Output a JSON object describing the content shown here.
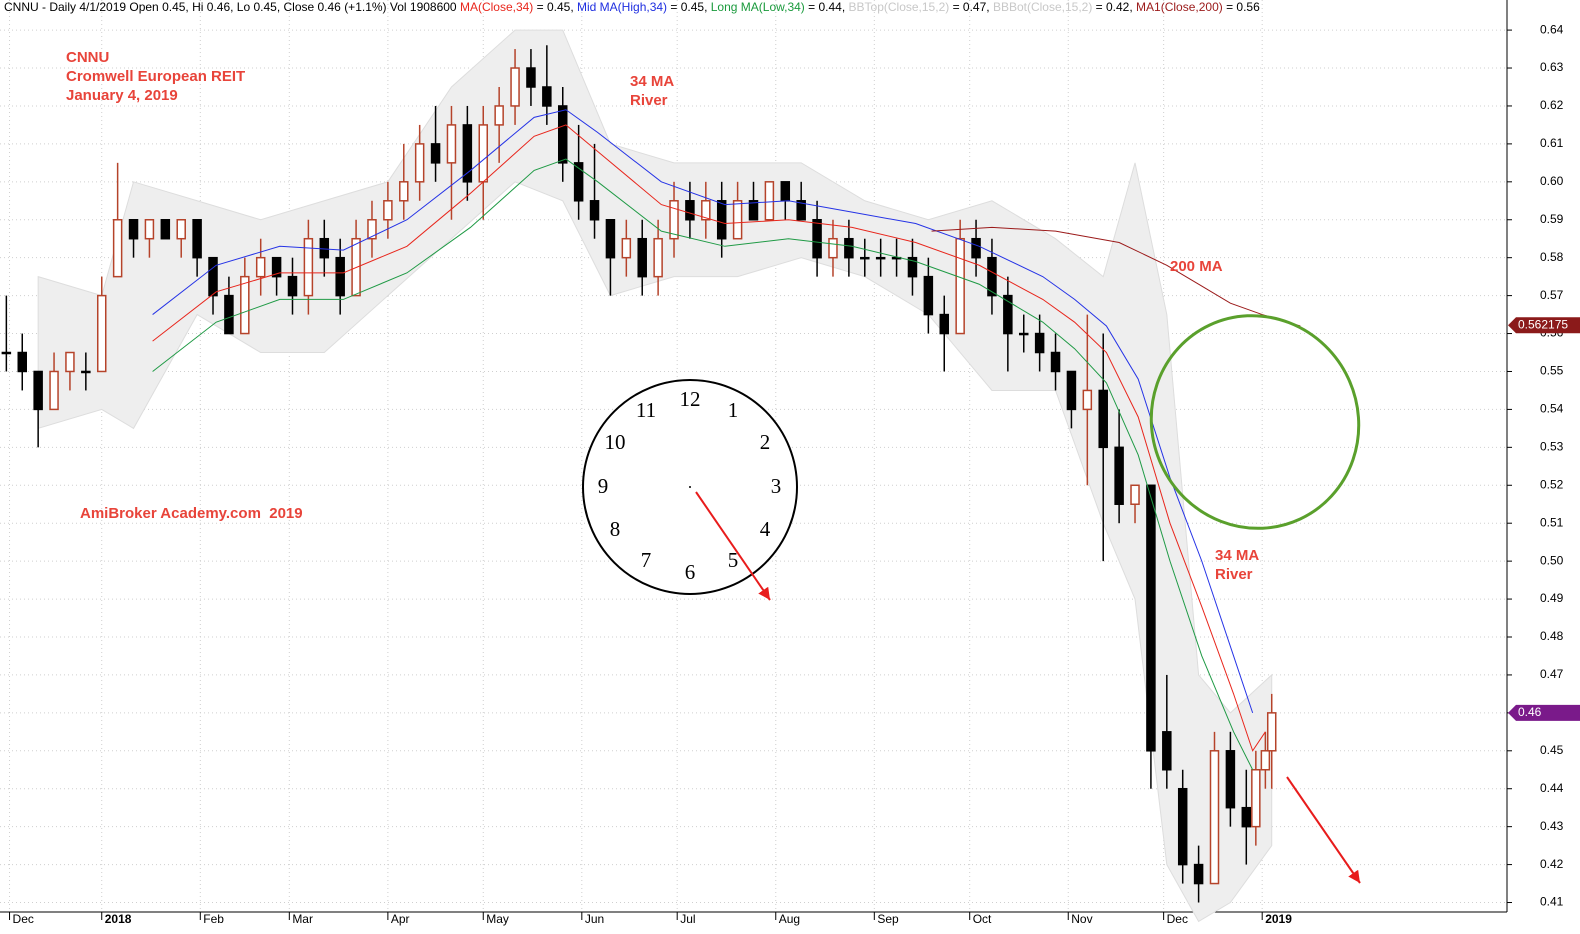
{
  "chart_data": {
    "type": "candlestick",
    "header": [
      {
        "text": "CNNU - Daily 4/1/2019 Open 0.45, Hi 0.46, Lo 0.45, Close 0.46 (+1.1%) Vol 1908600 ",
        "color": "#000000"
      },
      {
        "text": "MA(Close,34)",
        "color": "#e8261c"
      },
      {
        "text": " = 0.45, ",
        "color": "#000000"
      },
      {
        "text": "Mid MA(High,34)",
        "color": "#1f2fe0"
      },
      {
        "text": " = 0.45, ",
        "color": "#000000"
      },
      {
        "text": "Long MA(Low,34)",
        "color": "#1a9a3c"
      },
      {
        "text": " = 0.44, ",
        "color": "#000000"
      },
      {
        "text": "BBTop(Close,15,2)",
        "color": "#c8c8c8"
      },
      {
        "text": " = 0.47, ",
        "color": "#000000"
      },
      {
        "text": "BBBot(Close,15,2)",
        "color": "#c8c8c8"
      },
      {
        "text": " = 0.42, ",
        "color": "#000000"
      },
      {
        "text": "MA1(Close,200)",
        "color": "#9b1a1a"
      },
      {
        "text": " = 0.56",
        "color": "#000000"
      }
    ],
    "annotations": [
      "CNNU",
      "Cromwell European REIT",
      "January 4, 2019",
      "34 MA",
      "River",
      "200 MA",
      "AmiBroker Academy.com  2019",
      "34 MA",
      "River"
    ],
    "clock_labels": [
      "12",
      "1",
      "2",
      "3",
      "4",
      "5",
      "6",
      "7",
      "8",
      "9",
      "10",
      "11"
    ],
    "price_tags": [
      {
        "value": 0.562175,
        "label": "0.562175",
        "color": "#8b1a1a"
      },
      {
        "value": 0.46,
        "label": "0.46",
        "color": "#7a1a8a"
      }
    ],
    "xlim": [
      -32,
      442
    ],
    "xticks": [
      {
        "value": -29,
        "label": "Dec"
      },
      {
        "value": 0,
        "label": "2018"
      },
      {
        "value": 31,
        "label": "Feb"
      },
      {
        "value": 59,
        "label": "Mar"
      },
      {
        "value": 90,
        "label": "Apr"
      },
      {
        "value": 120,
        "label": "May"
      },
      {
        "value": 151,
        "label": "Jun"
      },
      {
        "value": 181,
        "label": "Jul"
      },
      {
        "value": 212,
        "label": "Aug"
      },
      {
        "value": 243,
        "label": "Sep"
      },
      {
        "value": 273,
        "label": "Oct"
      },
      {
        "value": 304,
        "label": "Nov"
      },
      {
        "value": 334,
        "label": "Dec"
      },
      {
        "value": 365,
        "label": "2019"
      }
    ],
    "ylim": [
      0.4075,
      0.6425
    ],
    "yticks": [
      0.41,
      0.42,
      0.43,
      0.44,
      0.45,
      0.46,
      0.47,
      0.48,
      0.49,
      {
        "value": 0.5,
        "label": "0.50"
      },
      0.51,
      0.52,
      0.53,
      0.54,
      0.55,
      0.56,
      0.57,
      0.58,
      0.59,
      {
        "value": 0.6,
        "label": "0.60"
      },
      0.61,
      0.62,
      0.63,
      0.64
    ],
    "grid": true,
    "up_color": "#b5432a",
    "down_color": "#000000",
    "x": [
      -30,
      -25,
      -20,
      -15,
      -10,
      -5,
      0,
      5,
      10,
      15,
      20,
      25,
      30,
      35,
      40,
      45,
      50,
      55,
      60,
      65,
      70,
      75,
      80,
      85,
      90,
      95,
      100,
      105,
      110,
      115,
      120,
      125,
      130,
      135,
      140,
      145,
      150,
      155,
      160,
      165,
      170,
      175,
      180,
      185,
      190,
      195,
      200,
      205,
      210,
      215,
      220,
      225,
      230,
      235,
      240,
      245,
      250,
      255,
      260,
      265,
      270,
      275,
      280,
      285,
      290,
      295,
      300,
      305,
      310,
      315,
      320,
      325,
      330,
      335,
      340,
      345,
      350,
      355,
      360,
      363,
      366,
      368
    ],
    "open": [
      0.555,
      0.555,
      0.55,
      0.54,
      0.55,
      0.55,
      0.55,
      0.575,
      0.59,
      0.585,
      0.59,
      0.585,
      0.59,
      0.58,
      0.57,
      0.56,
      0.575,
      0.58,
      0.575,
      0.57,
      0.585,
      0.58,
      0.57,
      0.585,
      0.59,
      0.595,
      0.6,
      0.61,
      0.605,
      0.615,
      0.6,
      0.615,
      0.62,
      0.63,
      0.625,
      0.62,
      0.605,
      0.595,
      0.59,
      0.58,
      0.585,
      0.575,
      0.585,
      0.595,
      0.59,
      0.595,
      0.585,
      0.595,
      0.59,
      0.6,
      0.595,
      0.59,
      0.58,
      0.585,
      0.58,
      0.58,
      0.58,
      0.58,
      0.575,
      0.565,
      0.56,
      0.585,
      0.58,
      0.57,
      0.56,
      0.56,
      0.555,
      0.55,
      0.54,
      0.545,
      0.53,
      0.515,
      0.52,
      0.455,
      0.44,
      0.42,
      0.415,
      0.45,
      0.435,
      0.43,
      0.445,
      0.45
    ],
    "high": [
      0.57,
      0.56,
      0.55,
      0.555,
      0.555,
      0.555,
      0.575,
      0.605,
      0.59,
      0.59,
      0.59,
      0.59,
      0.59,
      0.58,
      0.575,
      0.58,
      0.585,
      0.58,
      0.58,
      0.59,
      0.59,
      0.585,
      0.59,
      0.595,
      0.6,
      0.61,
      0.615,
      0.62,
      0.62,
      0.62,
      0.62,
      0.625,
      0.635,
      0.635,
      0.636,
      0.625,
      0.615,
      0.61,
      0.59,
      0.59,
      0.59,
      0.59,
      0.6,
      0.6,
      0.6,
      0.6,
      0.6,
      0.6,
      0.6,
      0.6,
      0.6,
      0.595,
      0.59,
      0.59,
      0.585,
      0.585,
      0.585,
      0.585,
      0.58,
      0.57,
      0.59,
      0.59,
      0.585,
      0.575,
      0.565,
      0.565,
      0.56,
      0.55,
      0.565,
      0.56,
      0.54,
      0.52,
      0.52,
      0.47,
      0.445,
      0.425,
      0.455,
      0.455,
      0.445,
      0.45,
      0.455,
      0.465
    ],
    "low": [
      0.55,
      0.545,
      0.53,
      0.54,
      0.545,
      0.545,
      0.55,
      0.575,
      0.58,
      0.58,
      0.585,
      0.58,
      0.575,
      0.565,
      0.56,
      0.56,
      0.57,
      0.57,
      0.565,
      0.565,
      0.575,
      0.565,
      0.57,
      0.58,
      0.585,
      0.59,
      0.595,
      0.6,
      0.59,
      0.595,
      0.59,
      0.605,
      0.615,
      0.62,
      0.615,
      0.6,
      0.59,
      0.585,
      0.57,
      0.575,
      0.57,
      0.57,
      0.58,
      0.585,
      0.585,
      0.58,
      0.585,
      0.59,
      0.59,
      0.59,
      0.59,
      0.575,
      0.575,
      0.575,
      0.575,
      0.575,
      0.575,
      0.57,
      0.56,
      0.55,
      0.56,
      0.575,
      0.565,
      0.55,
      0.555,
      0.55,
      0.545,
      0.535,
      0.52,
      0.5,
      0.51,
      0.51,
      0.44,
      0.44,
      0.415,
      0.41,
      0.415,
      0.43,
      0.42,
      0.425,
      0.44,
      0.44
    ],
    "close": [
      0.555,
      0.55,
      0.54,
      0.55,
      0.555,
      0.55,
      0.57,
      0.59,
      0.585,
      0.59,
      0.585,
      0.59,
      0.58,
      0.57,
      0.56,
      0.575,
      0.58,
      0.575,
      0.57,
      0.585,
      0.58,
      0.57,
      0.585,
      0.59,
      0.595,
      0.6,
      0.61,
      0.605,
      0.615,
      0.6,
      0.615,
      0.62,
      0.63,
      0.625,
      0.62,
      0.605,
      0.595,
      0.59,
      0.58,
      0.585,
      0.575,
      0.585,
      0.595,
      0.59,
      0.595,
      0.585,
      0.595,
      0.59,
      0.6,
      0.595,
      0.59,
      0.58,
      0.585,
      0.58,
      0.58,
      0.58,
      0.58,
      0.575,
      0.565,
      0.56,
      0.585,
      0.58,
      0.57,
      0.56,
      0.56,
      0.555,
      0.55,
      0.54,
      0.545,
      0.53,
      0.515,
      0.52,
      0.45,
      0.445,
      0.42,
      0.415,
      0.45,
      0.435,
      0.43,
      0.445,
      0.45,
      0.46
    ],
    "band": {
      "color": "#eeeeee",
      "x": [
        -20,
        0,
        10,
        30,
        50,
        70,
        90,
        110,
        130,
        145,
        160,
        180,
        200,
        220,
        240,
        260,
        280,
        300,
        315,
        325,
        335,
        345,
        355,
        368
      ],
      "upper": [
        0.575,
        0.57,
        0.6,
        0.595,
        0.59,
        0.595,
        0.6,
        0.625,
        0.64,
        0.64,
        0.61,
        0.605,
        0.605,
        0.605,
        0.595,
        0.59,
        0.595,
        0.585,
        0.575,
        0.605,
        0.565,
        0.47,
        0.46,
        0.47
      ],
      "lower": [
        0.535,
        0.54,
        0.535,
        0.565,
        0.555,
        0.555,
        0.57,
        0.585,
        0.6,
        0.595,
        0.57,
        0.575,
        0.575,
        0.58,
        0.575,
        0.565,
        0.545,
        0.545,
        0.51,
        0.49,
        0.42,
        0.405,
        0.41,
        0.425
      ]
    },
    "lines": [
      {
        "color": "#2533e6",
        "x": [
          16,
          36,
          56,
          76,
          96,
          116,
          136,
          146,
          156,
          176,
          196,
          216,
          236,
          256,
          276,
          296,
          306,
          316,
          326,
          336,
          346,
          356,
          362
        ],
        "values": [
          0.565,
          0.578,
          0.583,
          0.582,
          0.59,
          0.603,
          0.617,
          0.619,
          0.613,
          0.6,
          0.594,
          0.595,
          0.592,
          0.589,
          0.583,
          0.575,
          0.569,
          0.562,
          0.548,
          0.522,
          0.5,
          0.475,
          0.46
        ]
      },
      {
        "color": "#e8261c",
        "x": [
          16,
          36,
          56,
          76,
          96,
          116,
          136,
          146,
          156,
          176,
          196,
          216,
          236,
          256,
          276,
          296,
          306,
          316,
          326,
          336,
          346,
          356,
          362,
          366
        ],
        "values": [
          0.558,
          0.571,
          0.576,
          0.576,
          0.583,
          0.597,
          0.612,
          0.615,
          0.608,
          0.594,
          0.589,
          0.59,
          0.588,
          0.584,
          0.578,
          0.569,
          0.563,
          0.555,
          0.538,
          0.51,
          0.488,
          0.465,
          0.45,
          0.455
        ]
      },
      {
        "color": "#1f9a45",
        "x": [
          16,
          36,
          56,
          76,
          96,
          116,
          136,
          146,
          156,
          176,
          196,
          216,
          236,
          256,
          276,
          296,
          306,
          316,
          326,
          336,
          346,
          356,
          362
        ],
        "values": [
          0.55,
          0.563,
          0.569,
          0.569,
          0.576,
          0.588,
          0.603,
          0.606,
          0.6,
          0.587,
          0.583,
          0.585,
          0.583,
          0.579,
          0.573,
          0.563,
          0.556,
          0.547,
          0.528,
          0.5,
          0.475,
          0.455,
          0.445
        ]
      },
      {
        "color": "#9b1a1a",
        "x": [
          261,
          280,
          300,
          320,
          335,
          345,
          355,
          365,
          377
        ],
        "values": [
          0.587,
          0.588,
          0.587,
          0.584,
          0.578,
          0.573,
          0.568,
          0.565,
          0.562
        ]
      }
    ]
  }
}
